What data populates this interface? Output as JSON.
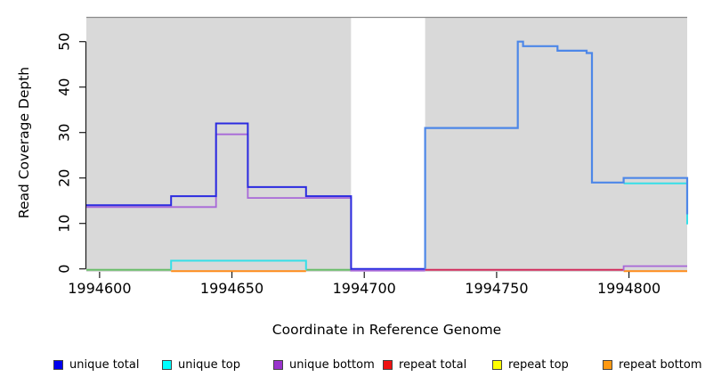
{
  "figure": {
    "background": "#ffffff"
  },
  "axes": {
    "y_title": "Read Coverage Depth",
    "x_title": "Coordinate in Reference Genome"
  },
  "chart_data": {
    "type": "line",
    "title": "",
    "xlabel": "Coordinate in Reference Genome",
    "ylabel": "Read Coverage Depth",
    "xlim": [
      1994595,
      1994822
    ],
    "ylim": [
      0,
      55.4
    ],
    "x_ticks": [
      1994600,
      1994650,
      1994700,
      1994750,
      1994800
    ],
    "y_ticks": [
      0,
      10,
      20,
      30,
      40,
      50
    ],
    "grid": false,
    "panel_bg": "#d9d9d9",
    "panel_top_border": "#8a8a8a",
    "gap_region": {
      "x0": 1994695,
      "x1": 1994723,
      "color": "#ffffff"
    },
    "legend_position": "bottom",
    "series": [
      {
        "name": "baseline-blend",
        "color": "#69bd69",
        "width": 2,
        "dy": 1,
        "segments": [
          [
            [
              1994595,
              0
            ],
            [
              1994627,
              0
            ]
          ],
          [
            [
              1994678,
              0
            ],
            [
              1994695,
              0
            ]
          ]
        ]
      },
      {
        "name": "repeat-total",
        "color": "#d22d5c",
        "width": 2,
        "dy": 1,
        "segments": [
          [
            [
              1994723,
              0
            ],
            [
              1994798,
              0
            ]
          ]
        ]
      },
      {
        "name": "repeat-bottom",
        "color": "#ff8c1a",
        "width": 2,
        "dy": 2.5,
        "segments": [
          [
            [
              1994627,
              0
            ],
            [
              1994678,
              0
            ]
          ],
          [
            [
              1994798,
              0
            ],
            [
              1994822,
              0
            ]
          ]
        ]
      },
      {
        "name": "unique-top",
        "color": "#35dfe8",
        "width": 2,
        "dy": 1,
        "segments": [
          [
            [
              1994627,
              0
            ],
            [
              1994627,
              2
            ],
            [
              1994678,
              2
            ],
            [
              1994678,
              0
            ]
          ],
          [
            [
              1994798,
              19
            ],
            [
              1994822,
              19
            ],
            [
              1994822,
              10
            ]
          ]
        ]
      },
      {
        "name": "unique-bottom",
        "color": "#a868d8",
        "width": 1.8,
        "dy": 2,
        "segments": [
          [
            [
              1994595,
              14
            ],
            [
              1994644,
              14
            ],
            [
              1994644,
              30
            ],
            [
              1994656,
              30
            ],
            [
              1994656,
              16
            ],
            [
              1994695,
              16
            ],
            [
              1994695,
              0
            ],
            [
              1994723,
              0
            ]
          ],
          [
            [
              1994798,
              0
            ],
            [
              1994798,
              1
            ],
            [
              1994822,
              1
            ]
          ]
        ]
      },
      {
        "name": "unique-total-left",
        "color": "#2b2be0",
        "width": 2,
        "dy": 0,
        "segments": [
          [
            [
              1994595,
              14
            ],
            [
              1994627,
              14
            ],
            [
              1994627,
              16
            ],
            [
              1994644,
              16
            ],
            [
              1994644,
              32
            ],
            [
              1994656,
              32
            ],
            [
              1994656,
              18
            ],
            [
              1994678,
              18
            ],
            [
              1994678,
              16
            ],
            [
              1994695,
              16
            ],
            [
              1994695,
              0
            ],
            [
              1994723,
              0
            ]
          ]
        ]
      },
      {
        "name": "unique-total-right",
        "color": "#4d87e8",
        "width": 2.2,
        "dy": 0,
        "segments": [
          [
            [
              1994723,
              0
            ],
            [
              1994723,
              31
            ],
            [
              1994758,
              31
            ],
            [
              1994758,
              50
            ],
            [
              1994760,
              50
            ],
            [
              1994760,
              49
            ],
            [
              1994773,
              49
            ],
            [
              1994773,
              48
            ],
            [
              1994784,
              48
            ],
            [
              1994784,
              47.5
            ],
            [
              1994786,
              47.5
            ],
            [
              1994786,
              19
            ],
            [
              1994798,
              19
            ],
            [
              1994798,
              20
            ],
            [
              1994822,
              20
            ],
            [
              1994822,
              12
            ]
          ]
        ]
      }
    ]
  },
  "legend": {
    "items": [
      {
        "label": "unique total",
        "color": "#0000ee"
      },
      {
        "label": "unique top",
        "color": "#00ffff"
      },
      {
        "label": "unique bottom",
        "color": "#9933cc"
      },
      {
        "label": "repeat total",
        "color": "#ee1111"
      },
      {
        "label": "repeat top",
        "color": "#ffff00"
      },
      {
        "label": "repeat bottom",
        "color": "#ff9912"
      }
    ]
  }
}
